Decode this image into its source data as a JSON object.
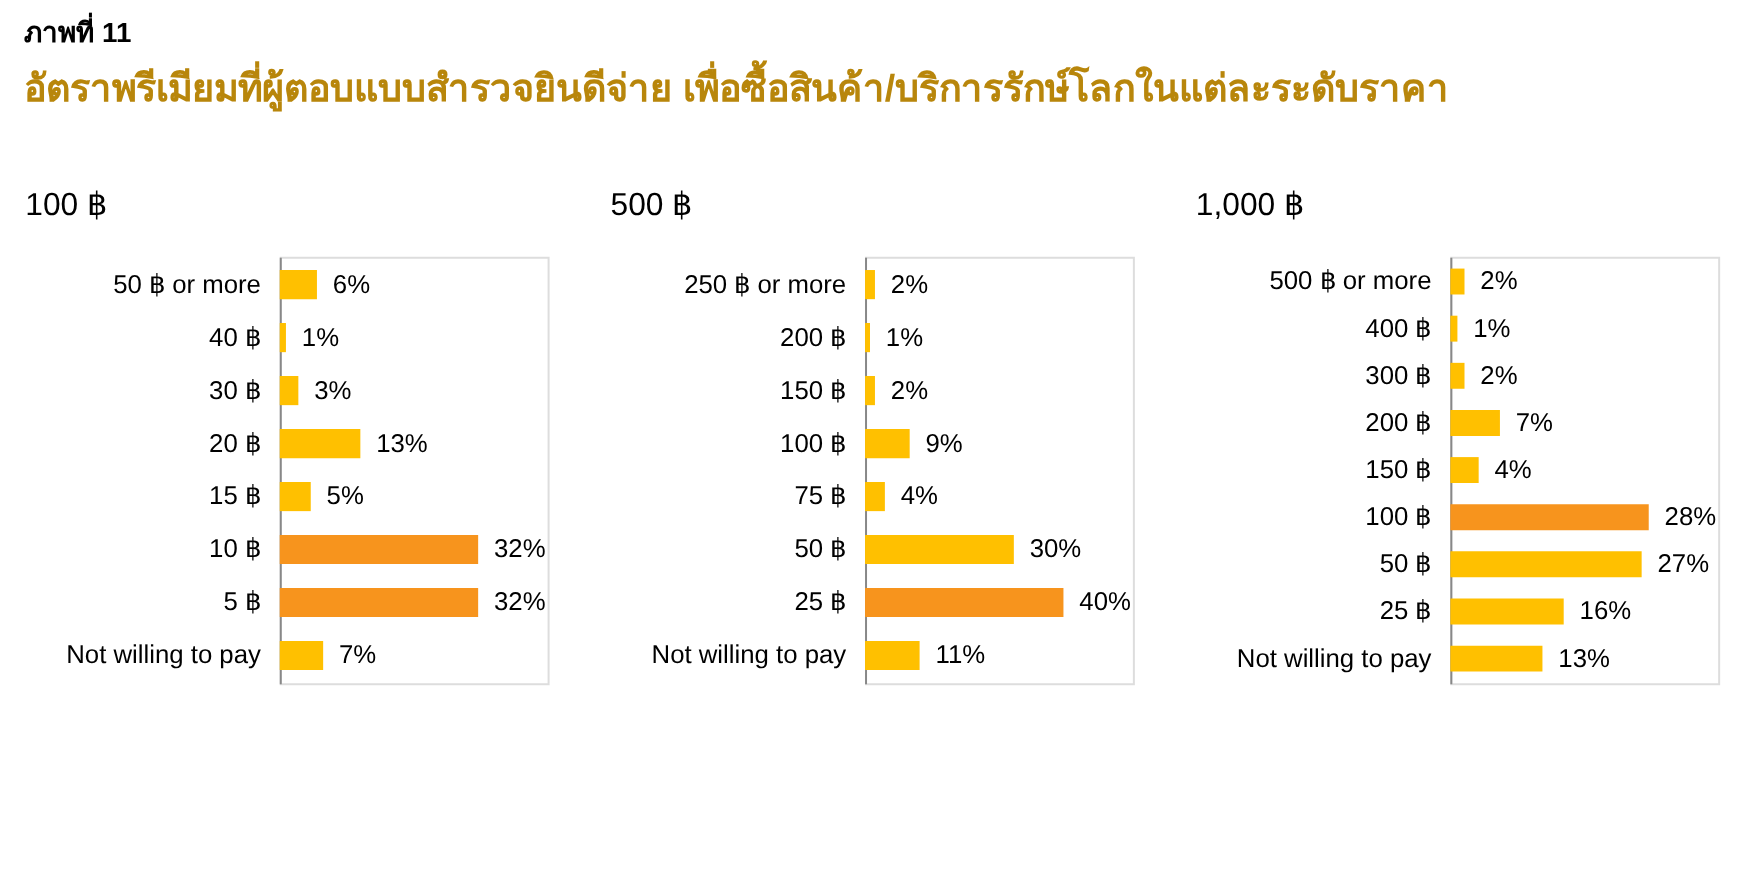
{
  "chart_data": [
    {
      "type": "bar",
      "orientation": "horizontal",
      "title": "100 ฿",
      "annotations": [
        "ภาพที่ 11",
        "อัตราพรีเมียมที่ผู้ตอบแบบสำรวจยินดีจ่าย เพื่อซื้อสินค้า/บริการรักษ์โลกในแต่ละระดับราคา"
      ],
      "categories": [
        "50 ฿ or more",
        "40 ฿",
        "30 ฿",
        "20 ฿",
        "15 ฿",
        "10 ฿",
        "5 ฿",
        "Not willing to pay"
      ],
      "values": [
        6,
        1,
        3,
        13,
        5,
        32,
        32,
        7
      ],
      "colors": [
        "#ffc000",
        "#ffc000",
        "#ffc000",
        "#ffc000",
        "#ffc000",
        "#f7941d",
        "#f7941d",
        "#ffc000"
      ],
      "value_labels": [
        "6%",
        "1%",
        "3%",
        "13%",
        "5%",
        "32%",
        "32%",
        "7%"
      ]
    },
    {
      "type": "bar",
      "orientation": "horizontal",
      "title": "500 ฿",
      "categories": [
        "250 ฿ or more",
        "200 ฿",
        "150 ฿",
        "100 ฿",
        "75 ฿",
        "50 ฿",
        "25 ฿",
        "Not willing to pay"
      ],
      "values": [
        2,
        1,
        2,
        9,
        4,
        30,
        40,
        11
      ],
      "colors": [
        "#ffc000",
        "#ffc000",
        "#ffc000",
        "#ffc000",
        "#ffc000",
        "#ffc000",
        "#f7941d",
        "#ffc000"
      ],
      "value_labels": [
        "2%",
        "1%",
        "2%",
        "9%",
        "4%",
        "30%",
        "40%",
        "11%"
      ]
    },
    {
      "type": "bar",
      "orientation": "horizontal",
      "title": "1,000 ฿",
      "categories": [
        "500 ฿ or more",
        "400 ฿",
        "300 ฿",
        "200 ฿",
        "150 ฿",
        "100 ฿",
        "50 ฿",
        "25 ฿",
        "Not willing to pay"
      ],
      "values": [
        2,
        1,
        2,
        7,
        4,
        28,
        27,
        16,
        13
      ],
      "colors": [
        "#ffc000",
        "#ffc000",
        "#ffc000",
        "#ffc000",
        "#ffc000",
        "#f7941d",
        "#ffc000",
        "#ffc000",
        "#ffc000"
      ],
      "value_labels": [
        "2%",
        "1%",
        "2%",
        "7%",
        "4%",
        "28%",
        "27%",
        "16%",
        "13%"
      ]
    }
  ]
}
